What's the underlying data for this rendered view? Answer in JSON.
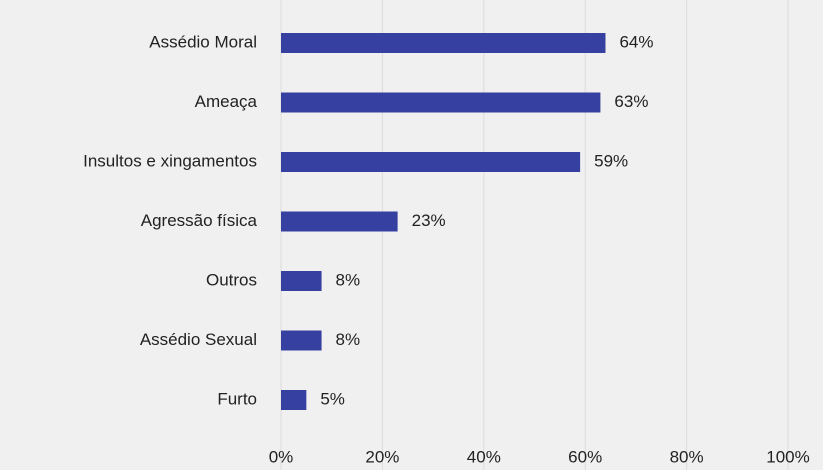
{
  "chart_data": {
    "type": "bar",
    "orientation": "horizontal",
    "categories": [
      "Assédio Moral",
      "Ameaça",
      "Insultos e xingamentos",
      "Agressão física",
      "Outros",
      "Assédio Sexual",
      "Furto"
    ],
    "values": [
      64,
      63,
      59,
      23,
      8,
      8,
      5
    ],
    "value_labels": [
      "64%",
      "63%",
      "59%",
      "23%",
      "8%",
      "8%",
      "5%"
    ],
    "color": "#3640a0",
    "xlim": [
      0,
      100
    ],
    "xticks": [
      {
        "value": 0,
        "label": "0%"
      },
      {
        "value": 20,
        "label": "20%"
      },
      {
        "value": 40,
        "label": "40%"
      },
      {
        "value": 60,
        "label": "60%"
      },
      {
        "value": 80,
        "label": "80%"
      },
      {
        "value": 100,
        "label": "100%"
      }
    ],
    "grid": true
  }
}
